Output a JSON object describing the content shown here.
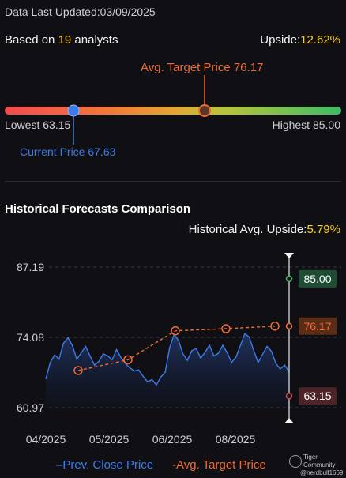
{
  "header": {
    "updated_prefix": "Data Last Updated:",
    "updated_date": "03/09/2025",
    "based_prefix": "Based on ",
    "analyst_count": "19",
    "based_suffix": " analysts",
    "upside_label": "Upside:",
    "upside_value": "12.62%"
  },
  "range": {
    "avg_target_label": "Avg. Target Price 76.17",
    "lowest_label": "Lowest 63.15",
    "highest_label": "Highest 85.00",
    "current_label": "Current Price 67.63",
    "lowest": 63.15,
    "highest": 85.0,
    "current": 67.63,
    "avg_target": 76.17
  },
  "historical": {
    "title": "Historical Forecasts Comparison",
    "upside_label": "Historical Avg. Upside:",
    "upside_value": "5.79%"
  },
  "chart_data": {
    "type": "line",
    "y_ticks": [
      "87.19",
      "74.08",
      "60.97"
    ],
    "ylim": [
      60.97,
      87.19
    ],
    "x_ticks": [
      "04/2025",
      "05/2025",
      "06/2025",
      "08/2025"
    ],
    "price_labels": {
      "high": "85.00",
      "avg": "76.17",
      "low": "63.15"
    },
    "series": [
      {
        "name": "Prev. Close Price",
        "color": "#3d7be8",
        "values": [
          66.3,
          69.4,
          70.8,
          70.0,
          73.0,
          74.0,
          72.6,
          70.0,
          71.2,
          72.4,
          70.6,
          68.9,
          69.6,
          71.0,
          70.6,
          69.9,
          71.8,
          70.3,
          69.2,
          68.4,
          67.8,
          68.0,
          66.8,
          65.8,
          66.2,
          65.2,
          66.7,
          67.6,
          72.2,
          74.6,
          73.5,
          71.0,
          69.8,
          71.6,
          72.0,
          70.2,
          71.3,
          72.6,
          70.6,
          71.1,
          72.6,
          71.2,
          69.4,
          70.4,
          72.6,
          74.8,
          74.1,
          71.6,
          69.4,
          70.9,
          72.4,
          71.5,
          69.2,
          68.2,
          68.9,
          67.63
        ]
      },
      {
        "name": "Avg. Target Price",
        "color": "#ef6a35",
        "values": [
          67.9,
          69.9,
          75.3,
          75.7,
          76.17
        ]
      }
    ],
    "legend": [
      "Prev. Close Price",
      "Avg. Target Price"
    ]
  },
  "watermark": {
    "line1": "Tiger Community",
    "line2": "@nerdbull1669"
  },
  "colors": {
    "blue": "#3d7be8",
    "orange": "#ef6a35",
    "yellow": "#ffd21f",
    "green_badge": "#1f4d33",
    "orange_badge": "#5b2d16",
    "red_badge": "#4c2326"
  }
}
